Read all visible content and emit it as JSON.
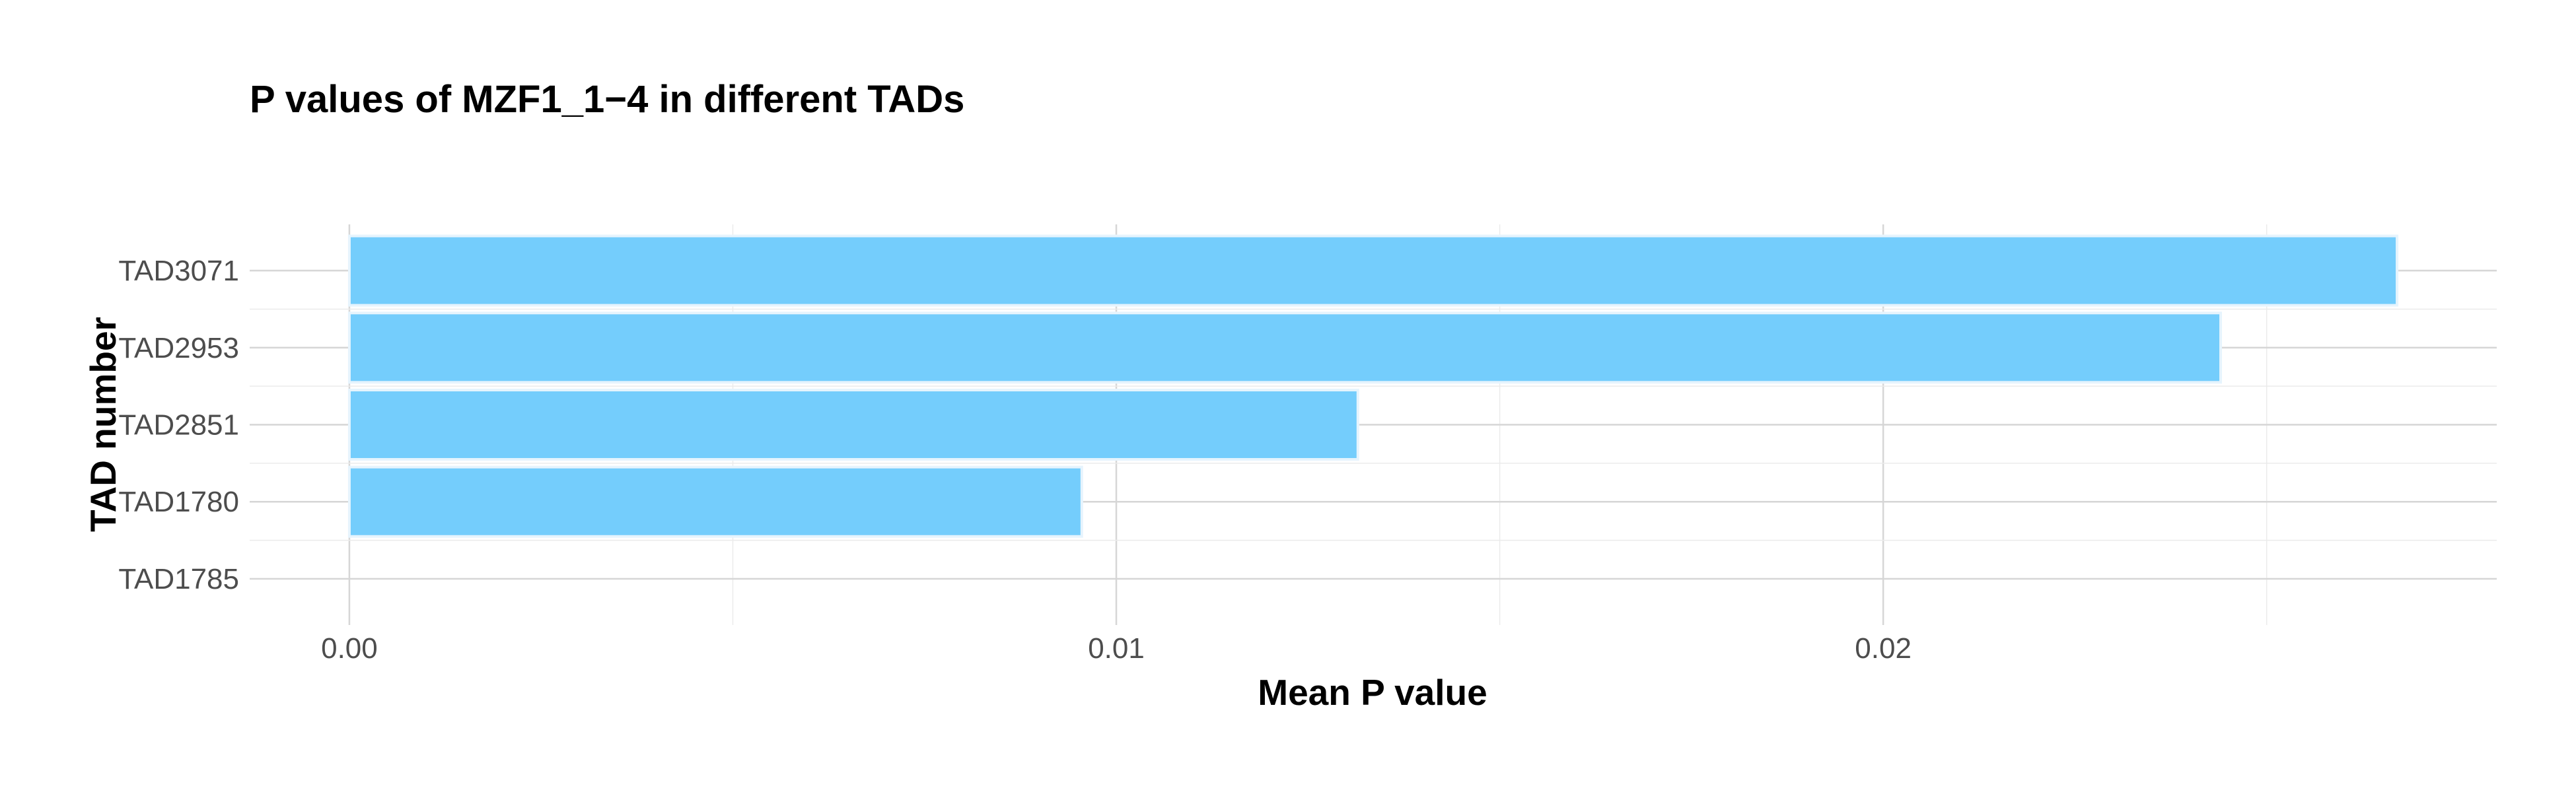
{
  "chart_data": {
    "type": "bar",
    "orientation": "horizontal",
    "title": "P values of MZF1_1−4 in different TADs",
    "xlabel": "Mean P value",
    "ylabel": "TAD number",
    "categories": [
      "TAD3071",
      "TAD2953",
      "TAD2851",
      "TAD1780",
      "TAD1785"
    ],
    "values": [
      0.0267,
      0.0244,
      0.01315,
      0.00955,
      0
    ],
    "xlim": [
      -0.0013,
      0.028
    ],
    "x_ticks": [
      0.0,
      0.01,
      0.02
    ],
    "x_tick_labels": [
      "0.00",
      "0.01",
      "0.02"
    ],
    "x_minor_ticks": [
      0.005,
      0.015,
      0.025
    ],
    "grid": true,
    "legend": "none",
    "bar_color": "#74cdfc",
    "bar_outline_color": "#e6f4fd"
  }
}
